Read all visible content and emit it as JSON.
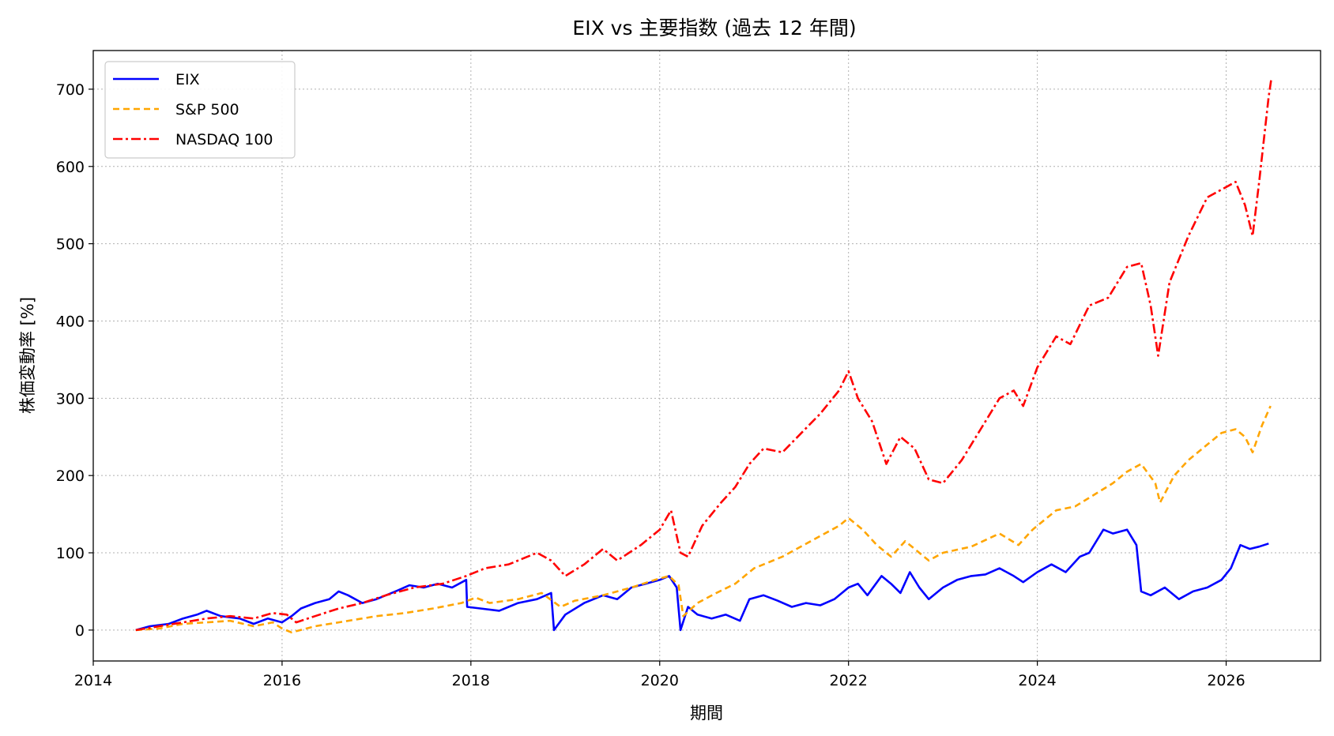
{
  "chart_data": {
    "type": "line",
    "title": "EIX vs 主要指数 (過去 12 年間)",
    "xlabel": "期間",
    "ylabel": "株価変動率 [%]",
    "xlim": [
      2014.0,
      2027.0
    ],
    "ylim": [
      -40,
      750
    ],
    "xticks": [
      "2014",
      "2016",
      "2018",
      "2020",
      "2022",
      "2024",
      "2026"
    ],
    "yticks": [
      "0",
      "100",
      "200",
      "300",
      "400",
      "500",
      "600",
      "700"
    ],
    "grid": true,
    "legend_position": "top-left",
    "series": [
      {
        "name": "EIX",
        "color": "#0000ff",
        "dash": "solid",
        "points": [
          [
            2014.45,
            0
          ],
          [
            2014.6,
            5
          ],
          [
            2014.8,
            8
          ],
          [
            2014.95,
            15
          ],
          [
            2015.1,
            20
          ],
          [
            2015.2,
            25
          ],
          [
            2015.35,
            18
          ],
          [
            2015.55,
            15
          ],
          [
            2015.7,
            8
          ],
          [
            2015.85,
            15
          ],
          [
            2016.0,
            10
          ],
          [
            2016.1,
            18
          ],
          [
            2016.2,
            28
          ],
          [
            2016.35,
            35
          ],
          [
            2016.5,
            40
          ],
          [
            2016.6,
            50
          ],
          [
            2016.7,
            45
          ],
          [
            2016.85,
            35
          ],
          [
            2017.0,
            40
          ],
          [
            2017.2,
            50
          ],
          [
            2017.35,
            58
          ],
          [
            2017.5,
            55
          ],
          [
            2017.65,
            60
          ],
          [
            2017.8,
            55
          ],
          [
            2017.95,
            65
          ],
          [
            2017.96,
            30
          ],
          [
            2018.1,
            28
          ],
          [
            2018.3,
            25
          ],
          [
            2018.5,
            35
          ],
          [
            2018.7,
            40
          ],
          [
            2018.85,
            48
          ],
          [
            2018.88,
            0
          ],
          [
            2019.0,
            20
          ],
          [
            2019.2,
            35
          ],
          [
            2019.4,
            45
          ],
          [
            2019.55,
            40
          ],
          [
            2019.7,
            55
          ],
          [
            2019.85,
            60
          ],
          [
            2020.0,
            65
          ],
          [
            2020.1,
            70
          ],
          [
            2020.18,
            55
          ],
          [
            2020.22,
            0
          ],
          [
            2020.3,
            30
          ],
          [
            2020.4,
            20
          ],
          [
            2020.55,
            15
          ],
          [
            2020.7,
            20
          ],
          [
            2020.85,
            12
          ],
          [
            2020.95,
            40
          ],
          [
            2021.1,
            45
          ],
          [
            2021.25,
            38
          ],
          [
            2021.4,
            30
          ],
          [
            2021.55,
            35
          ],
          [
            2021.7,
            32
          ],
          [
            2021.85,
            40
          ],
          [
            2022.0,
            55
          ],
          [
            2022.1,
            60
          ],
          [
            2022.2,
            45
          ],
          [
            2022.35,
            70
          ],
          [
            2022.45,
            60
          ],
          [
            2022.55,
            48
          ],
          [
            2022.65,
            75
          ],
          [
            2022.75,
            55
          ],
          [
            2022.85,
            40
          ],
          [
            2023.0,
            55
          ],
          [
            2023.15,
            65
          ],
          [
            2023.3,
            70
          ],
          [
            2023.45,
            72
          ],
          [
            2023.6,
            80
          ],
          [
            2023.75,
            70
          ],
          [
            2023.85,
            62
          ],
          [
            2024.0,
            75
          ],
          [
            2024.15,
            85
          ],
          [
            2024.3,
            75
          ],
          [
            2024.45,
            95
          ],
          [
            2024.55,
            100
          ],
          [
            2024.7,
            130
          ],
          [
            2024.8,
            125
          ],
          [
            2024.95,
            130
          ],
          [
            2025.05,
            110
          ],
          [
            2025.1,
            50
          ],
          [
            2025.2,
            45
          ],
          [
            2025.35,
            55
          ],
          [
            2025.5,
            40
          ],
          [
            2025.65,
            50
          ],
          [
            2025.8,
            55
          ],
          [
            2025.95,
            65
          ],
          [
            2026.05,
            80
          ],
          [
            2026.15,
            110
          ],
          [
            2026.25,
            105
          ],
          [
            2026.35,
            108
          ],
          [
            2026.45,
            112
          ]
        ]
      },
      {
        "name": "S&P 500",
        "color": "#ffa500",
        "dash": "8,5",
        "points": [
          [
            2014.45,
            0
          ],
          [
            2014.7,
            2
          ],
          [
            2014.95,
            8
          ],
          [
            2015.2,
            10
          ],
          [
            2015.45,
            12
          ],
          [
            2015.7,
            5
          ],
          [
            2015.9,
            10
          ],
          [
            2016.0,
            2
          ],
          [
            2016.1,
            -3
          ],
          [
            2016.35,
            5
          ],
          [
            2016.6,
            10
          ],
          [
            2016.85,
            15
          ],
          [
            2017.0,
            18
          ],
          [
            2017.3,
            22
          ],
          [
            2017.6,
            28
          ],
          [
            2017.9,
            35
          ],
          [
            2018.05,
            42
          ],
          [
            2018.2,
            35
          ],
          [
            2018.5,
            40
          ],
          [
            2018.75,
            48
          ],
          [
            2018.95,
            30
          ],
          [
            2019.1,
            38
          ],
          [
            2019.4,
            45
          ],
          [
            2019.7,
            55
          ],
          [
            2019.95,
            65
          ],
          [
            2020.1,
            70
          ],
          [
            2020.2,
            58
          ],
          [
            2020.25,
            18
          ],
          [
            2020.4,
            35
          ],
          [
            2020.6,
            48
          ],
          [
            2020.8,
            60
          ],
          [
            2021.0,
            80
          ],
          [
            2021.3,
            95
          ],
          [
            2021.6,
            115
          ],
          [
            2021.9,
            135
          ],
          [
            2022.0,
            145
          ],
          [
            2022.15,
            130
          ],
          [
            2022.3,
            110
          ],
          [
            2022.45,
            95
          ],
          [
            2022.6,
            115
          ],
          [
            2022.75,
            100
          ],
          [
            2022.85,
            90
          ],
          [
            2023.0,
            100
          ],
          [
            2023.3,
            108
          ],
          [
            2023.6,
            125
          ],
          [
            2023.8,
            110
          ],
          [
            2023.95,
            130
          ],
          [
            2024.2,
            155
          ],
          [
            2024.4,
            160
          ],
          [
            2024.6,
            175
          ],
          [
            2024.8,
            190
          ],
          [
            2024.95,
            205
          ],
          [
            2025.1,
            215
          ],
          [
            2025.25,
            190
          ],
          [
            2025.3,
            165
          ],
          [
            2025.45,
            200
          ],
          [
            2025.6,
            220
          ],
          [
            2025.8,
            240
          ],
          [
            2025.95,
            255
          ],
          [
            2026.1,
            260
          ],
          [
            2026.2,
            250
          ],
          [
            2026.28,
            230
          ],
          [
            2026.38,
            265
          ],
          [
            2026.47,
            290
          ]
        ]
      },
      {
        "name": "NASDAQ 100",
        "color": "#ff0000",
        "dash": "12,4,3,4",
        "points": [
          [
            2014.45,
            0
          ],
          [
            2014.7,
            5
          ],
          [
            2014.95,
            10
          ],
          [
            2015.2,
            15
          ],
          [
            2015.45,
            18
          ],
          [
            2015.7,
            15
          ],
          [
            2015.9,
            22
          ],
          [
            2016.05,
            20
          ],
          [
            2016.15,
            10
          ],
          [
            2016.35,
            18
          ],
          [
            2016.6,
            28
          ],
          [
            2016.85,
            35
          ],
          [
            2017.1,
            45
          ],
          [
            2017.4,
            55
          ],
          [
            2017.7,
            60
          ],
          [
            2017.95,
            70
          ],
          [
            2018.15,
            80
          ],
          [
            2018.4,
            85
          ],
          [
            2018.7,
            100
          ],
          [
            2018.85,
            90
          ],
          [
            2019.0,
            70
          ],
          [
            2019.2,
            85
          ],
          [
            2019.4,
            105
          ],
          [
            2019.55,
            90
          ],
          [
            2019.8,
            110
          ],
          [
            2020.0,
            130
          ],
          [
            2020.12,
            155
          ],
          [
            2020.22,
            100
          ],
          [
            2020.3,
            95
          ],
          [
            2020.45,
            135
          ],
          [
            2020.65,
            165
          ],
          [
            2020.8,
            185
          ],
          [
            2020.95,
            215
          ],
          [
            2021.1,
            235
          ],
          [
            2021.3,
            230
          ],
          [
            2021.5,
            255
          ],
          [
            2021.7,
            280
          ],
          [
            2021.9,
            310
          ],
          [
            2022.0,
            335
          ],
          [
            2022.1,
            300
          ],
          [
            2022.25,
            270
          ],
          [
            2022.4,
            215
          ],
          [
            2022.55,
            250
          ],
          [
            2022.7,
            235
          ],
          [
            2022.85,
            195
          ],
          [
            2023.0,
            190
          ],
          [
            2023.2,
            220
          ],
          [
            2023.4,
            260
          ],
          [
            2023.6,
            300
          ],
          [
            2023.75,
            310
          ],
          [
            2023.85,
            290
          ],
          [
            2024.0,
            340
          ],
          [
            2024.2,
            380
          ],
          [
            2024.35,
            370
          ],
          [
            2024.55,
            420
          ],
          [
            2024.75,
            430
          ],
          [
            2024.95,
            470
          ],
          [
            2025.1,
            475
          ],
          [
            2025.2,
            420
          ],
          [
            2025.28,
            355
          ],
          [
            2025.4,
            450
          ],
          [
            2025.6,
            510
          ],
          [
            2025.8,
            560
          ],
          [
            2025.95,
            570
          ],
          [
            2026.1,
            580
          ],
          [
            2026.2,
            550
          ],
          [
            2026.28,
            510
          ],
          [
            2026.35,
            580
          ],
          [
            2026.45,
            690
          ],
          [
            2026.48,
            715
          ]
        ]
      }
    ]
  }
}
